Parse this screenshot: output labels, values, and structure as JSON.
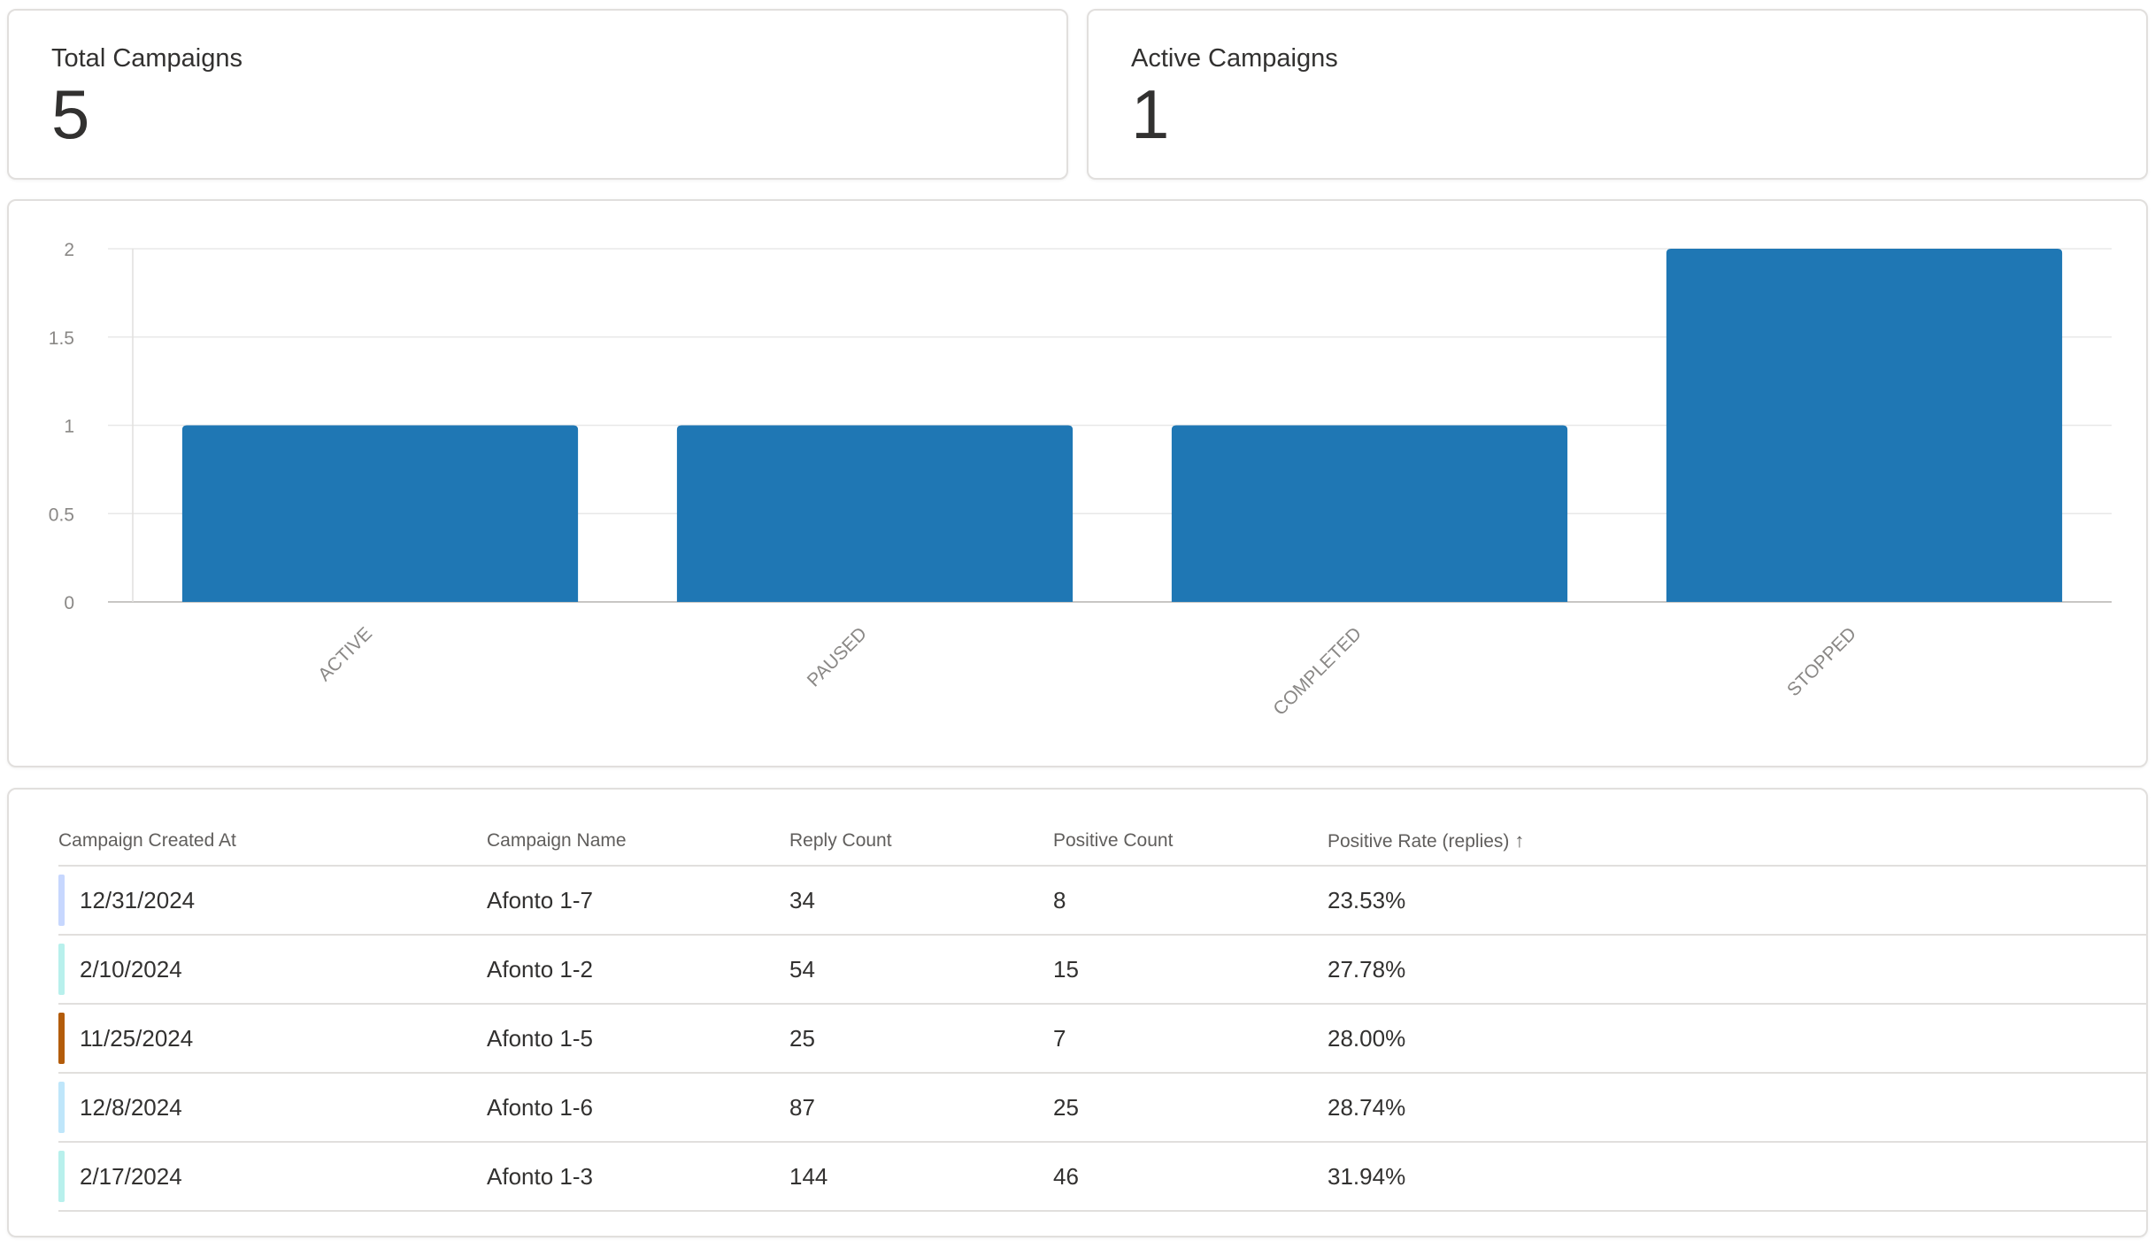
{
  "kpis": {
    "total": {
      "label": "Total Campaigns",
      "value": "5"
    },
    "active": {
      "label": "Active Campaigns",
      "value": "1"
    }
  },
  "chart_data": {
    "type": "bar",
    "categories": [
      "ACTIVE",
      "PAUSED",
      "COMPLETED",
      "STOPPED"
    ],
    "values": [
      1,
      1,
      1,
      2
    ],
    "yticks": [
      "0",
      "0.5",
      "1",
      "1.5",
      "2"
    ],
    "ylim": [
      0,
      2
    ],
    "color": "#1f77b4",
    "grid": true
  },
  "table": {
    "headers": [
      "Campaign Created At",
      "Campaign Name",
      "Reply Count",
      "Positive Count",
      "Positive Rate (replies)"
    ],
    "sort_icon": "arrow-up-icon",
    "rows": [
      {
        "created": "12/31/2024",
        "name": "Afonto 1-7",
        "replies": "34",
        "positive": "8",
        "rate": "23.53%",
        "color": "#c7d7fe"
      },
      {
        "created": "2/10/2024",
        "name": "Afonto 1-2",
        "replies": "54",
        "positive": "15",
        "rate": "27.78%",
        "color": "#b8f0ec"
      },
      {
        "created": "11/25/2024",
        "name": "Afonto 1-5",
        "replies": "25",
        "positive": "7",
        "rate": "28.00%",
        "color": "#b35c0a"
      },
      {
        "created": "12/8/2024",
        "name": "Afonto 1-6",
        "replies": "87",
        "positive": "25",
        "rate": "28.74%",
        "color": "#bfe6fa"
      },
      {
        "created": "2/17/2024",
        "name": "Afonto 1-3",
        "replies": "144",
        "positive": "46",
        "rate": "31.94%",
        "color": "#b8f0ec"
      }
    ]
  }
}
